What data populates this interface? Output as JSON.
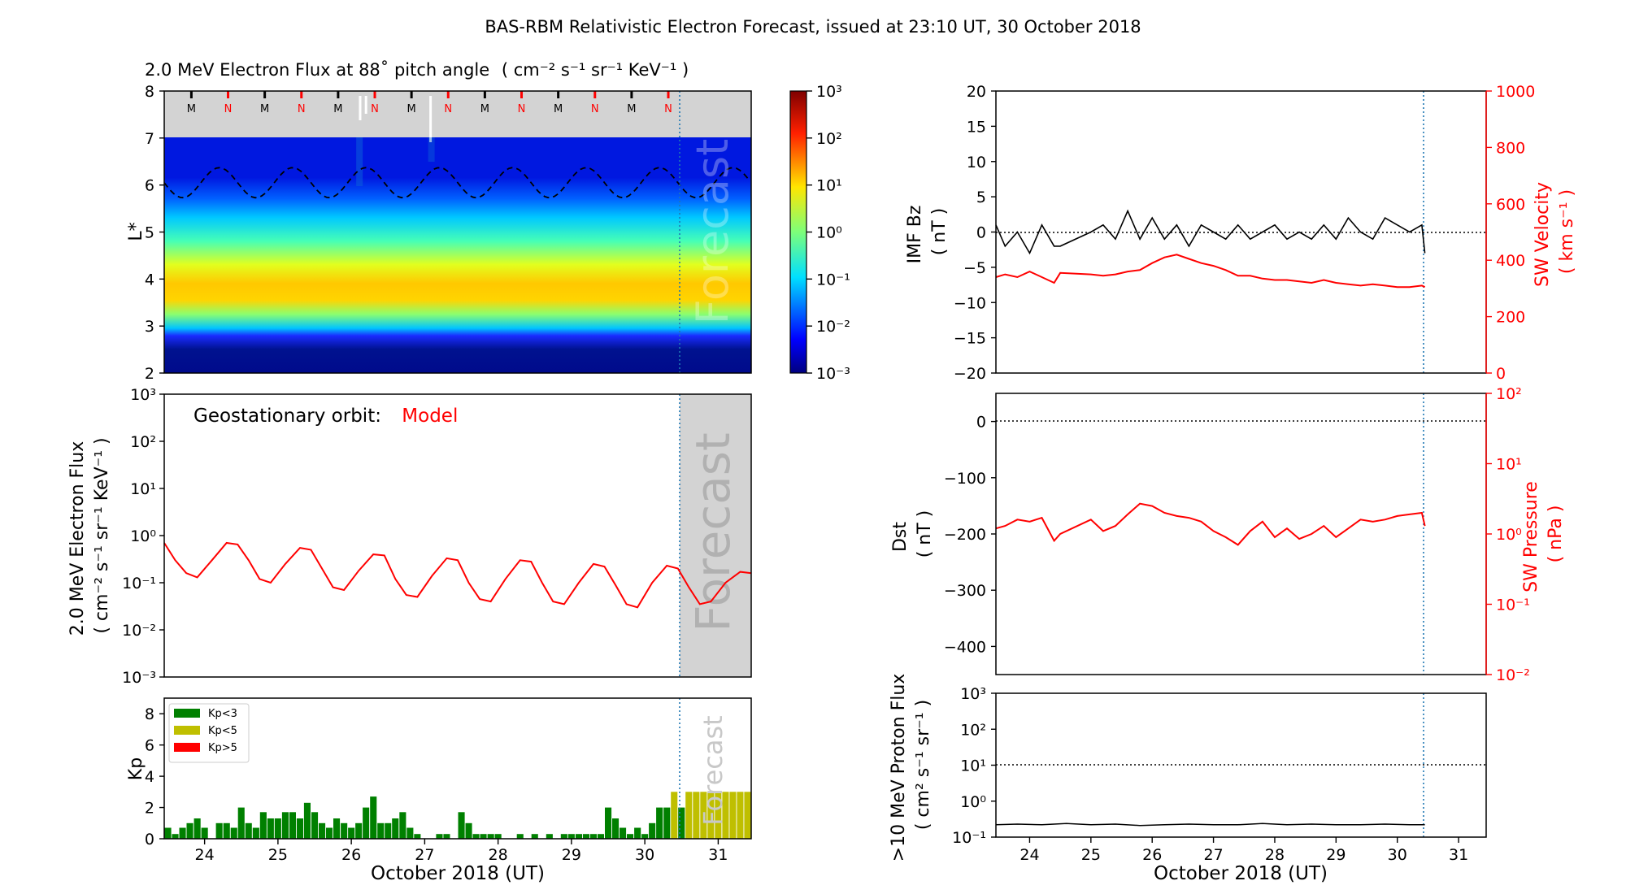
{
  "title": "BAS-RBM Relativistic Electron Forecast, issued at 23:10 UT, 30 October 2018",
  "colors": {
    "model": "#ff0000",
    "kp_low": "#008000",
    "kp_mid": "#bfbf00",
    "kp_high": "#ff0000",
    "forecast_bg": "#d3d3d3",
    "nowline": "#1f77b4"
  },
  "chart_data": [
    {
      "id": "flux_map",
      "type": "heatmap",
      "title": "2.0 MeV Electron Flux at 88˚ pitch angle",
      "title_unit": "( cm⁻² s⁻¹ sr⁻¹ KeV⁻¹ )",
      "ylabel": "L*",
      "ylim": [
        2,
        8
      ],
      "yticks": [
        "2",
        "3",
        "4",
        "5",
        "6",
        "7",
        "8"
      ],
      "xlim": [
        23.45,
        31.45
      ],
      "mn_markers": [
        "M",
        "N",
        "M",
        "N",
        "M",
        "N",
        "M",
        "N",
        "M",
        "N",
        "M",
        "N",
        "M",
        "N"
      ],
      "colorbar_ticks": [
        "10⁻³",
        "10⁻²",
        "10⁻¹",
        "10⁰",
        "10¹",
        "10²",
        "10³"
      ],
      "forecast_label": "Forecast",
      "nowcast_day": 30.46
    },
    {
      "id": "geo_flux",
      "type": "line",
      "annotation": "Geostationary orbit:",
      "annotation_model": "Model",
      "ylabel": "2.0 MeV Electron Flux",
      "ylabel_unit": "( cm⁻² s⁻¹ sr⁻¹ KeV⁻¹ )",
      "yscale": "log",
      "ylim": [
        0.001,
        1000
      ],
      "yticks": [
        "10⁻³",
        "10⁻²",
        "10⁻¹",
        "10⁰",
        "10¹",
        "10²",
        "10³"
      ],
      "x": [
        23.45,
        23.6,
        23.75,
        23.9,
        24.1,
        24.3,
        24.45,
        24.6,
        24.75,
        24.9,
        25.1,
        25.3,
        25.45,
        25.6,
        25.75,
        25.9,
        26.1,
        26.3,
        26.45,
        26.6,
        26.75,
        26.9,
        27.1,
        27.3,
        27.45,
        27.6,
        27.75,
        27.9,
        28.1,
        28.3,
        28.45,
        28.6,
        28.75,
        28.9,
        29.1,
        29.3,
        29.45,
        29.6,
        29.75,
        29.9,
        30.1,
        30.3,
        30.45,
        30.6,
        30.75,
        30.9,
        31.1,
        31.3,
        31.45
      ],
      "y": [
        0.7,
        0.3,
        0.16,
        0.13,
        0.3,
        0.7,
        0.65,
        0.3,
        0.12,
        0.1,
        0.25,
        0.55,
        0.5,
        0.2,
        0.08,
        0.07,
        0.18,
        0.4,
        0.38,
        0.12,
        0.055,
        0.05,
        0.14,
        0.33,
        0.3,
        0.1,
        0.045,
        0.04,
        0.12,
        0.3,
        0.28,
        0.1,
        0.04,
        0.035,
        0.1,
        0.25,
        0.22,
        0.09,
        0.035,
        0.03,
        0.1,
        0.23,
        0.2,
        0.08,
        0.035,
        0.04,
        0.1,
        0.17,
        0.16
      ],
      "forecast_label": "Forecast"
    },
    {
      "id": "kp",
      "type": "bar",
      "ylabel": "Kp",
      "ylim": [
        0,
        9
      ],
      "yticks": [
        "0",
        "2",
        "4",
        "6",
        "8"
      ],
      "x": [
        23.5,
        23.6,
        23.7,
        23.8,
        23.9,
        24.0,
        24.2,
        24.3,
        24.4,
        24.5,
        24.6,
        24.7,
        24.8,
        24.9,
        25.0,
        25.1,
        25.2,
        25.3,
        25.4,
        25.5,
        25.6,
        25.7,
        25.8,
        25.9,
        26.0,
        26.1,
        26.2,
        26.3,
        26.4,
        26.5,
        26.6,
        26.7,
        26.8,
        26.9,
        27.2,
        27.3,
        27.5,
        27.6,
        27.7,
        27.8,
        27.9,
        28.0,
        28.3,
        28.5,
        28.7,
        28.9,
        29.0,
        29.1,
        29.2,
        29.3,
        29.4,
        29.5,
        29.6,
        29.7,
        29.8,
        29.9,
        30.0,
        30.1,
        30.2,
        30.3,
        30.4,
        30.5,
        30.6,
        30.7,
        30.8,
        30.9,
        31.0,
        31.1,
        31.2,
        31.3,
        31.4
      ],
      "values": [
        0.7,
        0.3,
        0.7,
        1.0,
        1.3,
        0.7,
        1.0,
        1.0,
        0.7,
        2.0,
        1.0,
        0.7,
        1.7,
        1.3,
        1.3,
        1.7,
        1.7,
        1.3,
        2.3,
        1.7,
        1.0,
        0.7,
        1.3,
        1.0,
        0.7,
        1.0,
        2.0,
        2.7,
        1.0,
        1.0,
        1.3,
        1.7,
        0.7,
        0.3,
        0.3,
        0.3,
        1.7,
        1.0,
        0.3,
        0.3,
        0.3,
        0.3,
        0.3,
        0.3,
        0.3,
        0.3,
        0.3,
        0.3,
        0.3,
        0.3,
        0.3,
        2.0,
        1.3,
        0.7,
        0.3,
        0.7,
        0.3,
        1.0,
        2.0,
        2.0,
        3.0,
        2.0,
        3.0,
        3.0,
        3.0,
        3.0,
        3.0,
        3.0,
        3.0,
        3.0,
        3.0
      ],
      "legend": [
        "Kp<3",
        "Kp<5",
        "Kp>5"
      ],
      "legend_position": "top-left",
      "forecast_label": "Forecast",
      "xlabel": "October 2018 (UT)",
      "xticks": [
        "24",
        "25",
        "26",
        "27",
        "28",
        "29",
        "30",
        "31"
      ]
    },
    {
      "id": "imf_sw",
      "type": "line",
      "ylabel": "IMF Bz",
      "ylabel_unit": "( nT )",
      "ylim": [
        -20,
        20
      ],
      "yticks": [
        "−20",
        "−15",
        "−10",
        "−5",
        "0",
        "5",
        "10",
        "15",
        "20"
      ],
      "y2label": "SW Velocity",
      "y2label_unit": "( km s⁻¹ )",
      "y2lim": [
        0,
        1000
      ],
      "y2ticks": [
        "0",
        "200",
        "400",
        "600",
        "800",
        "1000"
      ],
      "bz_x": [
        23.45,
        23.6,
        23.8,
        24.0,
        24.2,
        24.4,
        24.5,
        25.0,
        25.2,
        25.4,
        25.6,
        25.8,
        26.0,
        26.2,
        26.4,
        26.6,
        26.8,
        27.0,
        27.2,
        27.4,
        27.6,
        27.8,
        28.0,
        28.2,
        28.4,
        28.6,
        28.8,
        29.0,
        29.2,
        29.4,
        29.6,
        29.8,
        30.0,
        30.2,
        30.4,
        30.45
      ],
      "bz": [
        1,
        -2,
        0,
        -3,
        1,
        -2,
        -2,
        0,
        1,
        -1,
        3,
        -1,
        2,
        -1,
        1,
        -2,
        1,
        0,
        -1,
        1,
        -1,
        0,
        1,
        -1,
        0,
        -1,
        1,
        -1,
        2,
        0,
        -1,
        2,
        1,
        0,
        1,
        -3
      ],
      "velocity_x": [
        23.45,
        23.6,
        23.8,
        24.0,
        24.2,
        24.4,
        24.5,
        25.0,
        25.2,
        25.4,
        25.6,
        25.8,
        26.0,
        26.2,
        26.4,
        26.6,
        26.8,
        27.0,
        27.2,
        27.4,
        27.6,
        27.8,
        28.0,
        28.2,
        28.4,
        28.6,
        28.8,
        29.0,
        29.2,
        29.4,
        29.6,
        29.8,
        30.0,
        30.2,
        30.4,
        30.45
      ],
      "velocity": [
        340,
        350,
        340,
        360,
        340,
        320,
        355,
        350,
        345,
        350,
        360,
        365,
        390,
        410,
        420,
        405,
        390,
        380,
        365,
        345,
        345,
        335,
        330,
        330,
        325,
        320,
        330,
        320,
        315,
        310,
        315,
        310,
        305,
        305,
        310,
        305
      ]
    },
    {
      "id": "dst_pressure",
      "type": "line",
      "ylabel": "Dst",
      "ylabel_unit": "( nT )",
      "ylim": [
        -450,
        50
      ],
      "yticks": [
        "−400",
        "−300",
        "−200",
        "−100",
        "0"
      ],
      "y2label": "SW Pressure",
      "y2label_unit": "( nPa )",
      "y2scale": "log",
      "y2lim": [
        0.01,
        100
      ],
      "y2ticks": [
        "10⁻²",
        "10⁻¹",
        "10⁰",
        "10¹",
        "10²"
      ],
      "pressure_x": [
        23.45,
        23.6,
        23.8,
        24.0,
        24.2,
        24.4,
        24.5,
        25.0,
        25.2,
        25.4,
        25.6,
        25.8,
        26.0,
        26.2,
        26.4,
        26.6,
        26.8,
        27.0,
        27.2,
        27.4,
        27.6,
        27.8,
        28.0,
        28.2,
        28.4,
        28.6,
        28.8,
        29.0,
        29.2,
        29.4,
        29.6,
        29.8,
        30.0,
        30.2,
        30.4,
        30.45
      ],
      "pressure": [
        1.2,
        1.3,
        1.6,
        1.5,
        1.7,
        0.8,
        1.0,
        1.6,
        1.1,
        1.3,
        1.9,
        2.7,
        2.5,
        2.0,
        1.8,
        1.7,
        1.5,
        1.1,
        0.9,
        0.7,
        1.1,
        1.5,
        0.9,
        1.2,
        0.85,
        1.0,
        1.3,
        0.9,
        1.2,
        1.6,
        1.5,
        1.6,
        1.8,
        1.9,
        2.0,
        1.3
      ]
    },
    {
      "id": "proton_flux",
      "type": "line",
      "ylabel": ">10 MeV Proton Flux",
      "ylabel_unit": "( cm² s⁻¹ sr⁻¹ )",
      "yscale": "log",
      "ylim": [
        0.1,
        1000
      ],
      "yticks": [
        "10⁻¹",
        "10⁰",
        "10¹",
        "10²",
        "10³"
      ],
      "threshold": 10,
      "x": [
        23.45,
        23.8,
        24.2,
        24.6,
        25.0,
        25.4,
        25.8,
        26.2,
        26.6,
        27.0,
        27.4,
        27.8,
        28.2,
        28.6,
        29.0,
        29.4,
        29.8,
        30.2,
        30.45
      ],
      "y": [
        0.22,
        0.23,
        0.22,
        0.24,
        0.22,
        0.23,
        0.21,
        0.22,
        0.23,
        0.22,
        0.22,
        0.24,
        0.22,
        0.23,
        0.22,
        0.22,
        0.23,
        0.22,
        0.22
      ],
      "xlabel": "October 2018 (UT)",
      "xticks": [
        "24",
        "25",
        "26",
        "27",
        "28",
        "29",
        "30",
        "31"
      ]
    }
  ]
}
